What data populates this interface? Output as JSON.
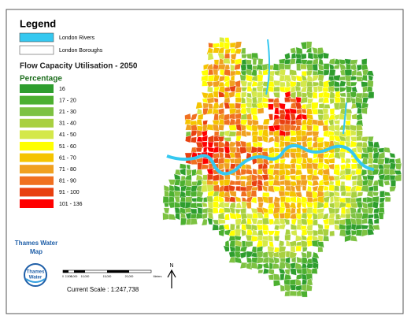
{
  "legend": {
    "title": "Legend",
    "layers": [
      {
        "label": "London Rivers",
        "color": "#35c8f0"
      },
      {
        "label": "London Boroughs",
        "color": "#ffffff"
      }
    ],
    "map_title": "Flow Capacity Utilisation - 2050",
    "class_title": "Percentage",
    "classes": [
      {
        "label": "16",
        "color": "#2e9e2e"
      },
      {
        "label": "17 - 20",
        "color": "#4cb030"
      },
      {
        "label": "21 - 30",
        "color": "#7dc242"
      },
      {
        "label": "31 - 40",
        "color": "#a8d040"
      },
      {
        "label": "41 - 50",
        "color": "#d4e84a"
      },
      {
        "label": "51 - 60",
        "color": "#ffff00"
      },
      {
        "label": "61 - 70",
        "color": "#f5c400"
      },
      {
        "label": "71 - 80",
        "color": "#f0a020"
      },
      {
        "label": "81 - 90",
        "color": "#f07020"
      },
      {
        "label": "91 - 100",
        "color": "#e84010"
      },
      {
        "label": "101 - 136",
        "color": "#ff0000"
      }
    ]
  },
  "brand": {
    "line1": "Thames Water",
    "line2": "Map",
    "logo_line1": "Thames",
    "logo_line2": "Water"
  },
  "scale_bar": {
    "labels": [
      "0",
      "2,500",
      "5,000",
      "10,000",
      "15,000",
      "20,000",
      "Meters"
    ],
    "current_scale": "Current  Scale : 1:247,738"
  },
  "north": "N"
}
